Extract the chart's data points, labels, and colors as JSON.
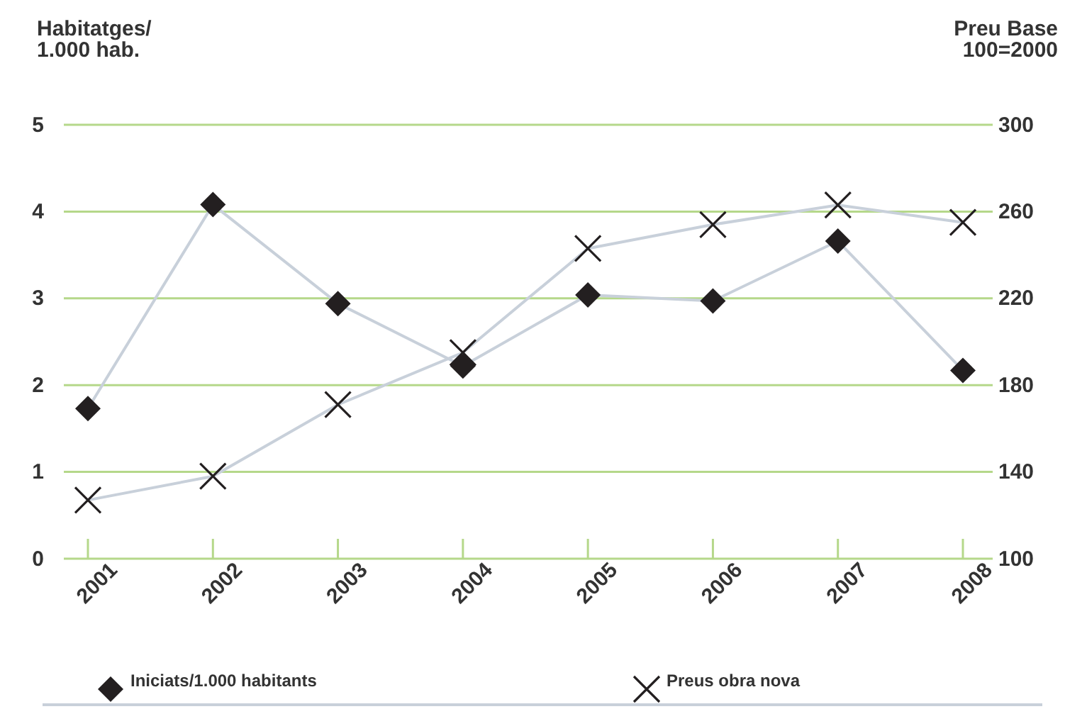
{
  "chart_data": {
    "type": "line",
    "ylabel": "Habitatges/\n1.000 hab.",
    "y2label": "Preu Base\n100=2000",
    "categories": [
      "2001",
      "2002",
      "2003",
      "2004",
      "2005",
      "2006",
      "2007",
      "2008"
    ],
    "series": [
      {
        "name": "Iniciats/1.000 habitants",
        "color": "#c8d0da",
        "marker": "diamond",
        "values": [
          1.73,
          4.08,
          2.94,
          2.22,
          3.04,
          2.97,
          3.66,
          2.17
        ]
      },
      {
        "name": "Preus obra nova",
        "color": "#c8d0da",
        "marker": "cross",
        "axis": "y2",
        "values": [
          127,
          138,
          171,
          195,
          243,
          254,
          263,
          255
        ]
      }
    ],
    "ylim": [
      0,
      5
    ],
    "yticks": [
      0,
      1,
      2,
      3,
      4,
      5
    ],
    "y2lim": [
      100,
      300
    ],
    "y2ticks": [
      100,
      140,
      180,
      220,
      260,
      300
    ],
    "grid": "y",
    "legend": "bottom"
  }
}
